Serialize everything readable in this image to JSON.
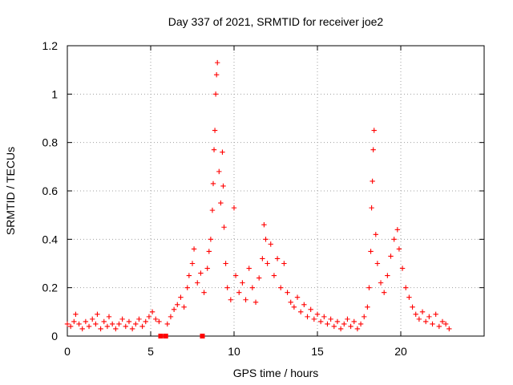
{
  "chart_data": {
    "type": "scatter",
    "title": "Day 337 of 2021, SRMTID for receiver joe2",
    "xlabel": "GPS time / hours",
    "ylabel": "SRMTID / TECUs",
    "xlim": [
      0,
      25
    ],
    "ylim": [
      0,
      1.2
    ],
    "xticks": [
      0,
      5,
      10,
      15,
      20
    ],
    "xtick_labels": [
      "0",
      "5",
      "10",
      "15",
      "20"
    ],
    "yticks": [
      0,
      0.2,
      0.4,
      0.6,
      0.8,
      1.0,
      1.2
    ],
    "ytick_labels": [
      "0",
      "0.2",
      "0.4",
      "0.6",
      "0.8",
      "1",
      "1.2"
    ],
    "grid": true,
    "color": "#ff0000",
    "marker": "plus",
    "series": [
      {
        "name": "SRMTID",
        "points": [
          [
            0.0,
            0.05
          ],
          [
            0.2,
            0.04
          ],
          [
            0.4,
            0.06
          ],
          [
            0.5,
            0.09
          ],
          [
            0.7,
            0.05
          ],
          [
            0.9,
            0.03
          ],
          [
            1.1,
            0.06
          ],
          [
            1.3,
            0.04
          ],
          [
            1.5,
            0.07
          ],
          [
            1.7,
            0.05
          ],
          [
            1.8,
            0.09
          ],
          [
            2.0,
            0.03
          ],
          [
            2.2,
            0.06
          ],
          [
            2.4,
            0.04
          ],
          [
            2.5,
            0.08
          ],
          [
            2.7,
            0.05
          ],
          [
            2.9,
            0.03
          ],
          [
            3.1,
            0.05
          ],
          [
            3.3,
            0.07
          ],
          [
            3.5,
            0.04
          ],
          [
            3.7,
            0.06
          ],
          [
            3.9,
            0.03
          ],
          [
            4.1,
            0.05
          ],
          [
            4.3,
            0.07
          ],
          [
            4.5,
            0.04
          ],
          [
            4.7,
            0.06
          ],
          [
            4.9,
            0.08
          ],
          [
            5.1,
            0.1
          ],
          [
            5.3,
            0.07
          ],
          [
            5.5,
            0.06
          ],
          [
            5.6,
            0.0
          ],
          [
            5.9,
            0.0
          ],
          [
            6.0,
            0.05
          ],
          [
            6.2,
            0.08
          ],
          [
            6.4,
            0.11
          ],
          [
            6.6,
            0.13
          ],
          [
            6.8,
            0.16
          ],
          [
            7.0,
            0.12
          ],
          [
            7.2,
            0.2
          ],
          [
            7.3,
            0.25
          ],
          [
            7.5,
            0.3
          ],
          [
            7.6,
            0.36
          ],
          [
            7.8,
            0.22
          ],
          [
            8.0,
            0.26
          ],
          [
            8.1,
            0.0
          ],
          [
            8.2,
            0.18
          ],
          [
            8.4,
            0.28
          ],
          [
            8.5,
            0.35
          ],
          [
            8.6,
            0.4
          ],
          [
            8.7,
            0.52
          ],
          [
            8.75,
            0.63
          ],
          [
            8.8,
            0.77
          ],
          [
            8.85,
            0.85
          ],
          [
            8.9,
            1.0
          ],
          [
            8.95,
            1.08
          ],
          [
            9.0,
            1.13
          ],
          [
            9.1,
            0.68
          ],
          [
            9.2,
            0.55
          ],
          [
            9.3,
            0.76
          ],
          [
            9.35,
            0.62
          ],
          [
            9.4,
            0.45
          ],
          [
            9.5,
            0.3
          ],
          [
            9.6,
            0.2
          ],
          [
            9.8,
            0.15
          ],
          [
            10.0,
            0.53
          ],
          [
            10.1,
            0.25
          ],
          [
            10.3,
            0.18
          ],
          [
            10.5,
            0.22
          ],
          [
            10.7,
            0.15
          ],
          [
            10.9,
            0.28
          ],
          [
            11.1,
            0.2
          ],
          [
            11.3,
            0.14
          ],
          [
            11.5,
            0.24
          ],
          [
            11.7,
            0.32
          ],
          [
            11.8,
            0.46
          ],
          [
            11.9,
            0.4
          ],
          [
            12.0,
            0.3
          ],
          [
            12.2,
            0.38
          ],
          [
            12.4,
            0.25
          ],
          [
            12.6,
            0.32
          ],
          [
            12.8,
            0.2
          ],
          [
            13.0,
            0.3
          ],
          [
            13.2,
            0.18
          ],
          [
            13.4,
            0.14
          ],
          [
            13.6,
            0.12
          ],
          [
            13.8,
            0.16
          ],
          [
            14.0,
            0.1
          ],
          [
            14.2,
            0.13
          ],
          [
            14.4,
            0.08
          ],
          [
            14.6,
            0.11
          ],
          [
            14.8,
            0.07
          ],
          [
            15.0,
            0.09
          ],
          [
            15.2,
            0.06
          ],
          [
            15.4,
            0.08
          ],
          [
            15.6,
            0.05
          ],
          [
            15.8,
            0.07
          ],
          [
            16.0,
            0.04
          ],
          [
            16.2,
            0.06
          ],
          [
            16.4,
            0.03
          ],
          [
            16.6,
            0.05
          ],
          [
            16.8,
            0.07
          ],
          [
            17.0,
            0.04
          ],
          [
            17.2,
            0.06
          ],
          [
            17.4,
            0.03
          ],
          [
            17.6,
            0.05
          ],
          [
            17.8,
            0.08
          ],
          [
            18.0,
            0.12
          ],
          [
            18.1,
            0.2
          ],
          [
            18.2,
            0.35
          ],
          [
            18.25,
            0.53
          ],
          [
            18.3,
            0.64
          ],
          [
            18.35,
            0.77
          ],
          [
            18.4,
            0.85
          ],
          [
            18.5,
            0.42
          ],
          [
            18.6,
            0.3
          ],
          [
            18.8,
            0.22
          ],
          [
            19.0,
            0.18
          ],
          [
            19.2,
            0.25
          ],
          [
            19.4,
            0.33
          ],
          [
            19.6,
            0.4
          ],
          [
            19.8,
            0.44
          ],
          [
            19.9,
            0.36
          ],
          [
            20.1,
            0.28
          ],
          [
            20.3,
            0.2
          ],
          [
            20.5,
            0.16
          ],
          [
            20.7,
            0.12
          ],
          [
            20.9,
            0.09
          ],
          [
            21.1,
            0.07
          ],
          [
            21.3,
            0.1
          ],
          [
            21.5,
            0.06
          ],
          [
            21.7,
            0.08
          ],
          [
            21.9,
            0.05
          ],
          [
            22.1,
            0.09
          ],
          [
            22.3,
            0.04
          ],
          [
            22.5,
            0.06
          ],
          [
            22.7,
            0.05
          ],
          [
            22.9,
            0.03
          ]
        ]
      }
    ]
  }
}
